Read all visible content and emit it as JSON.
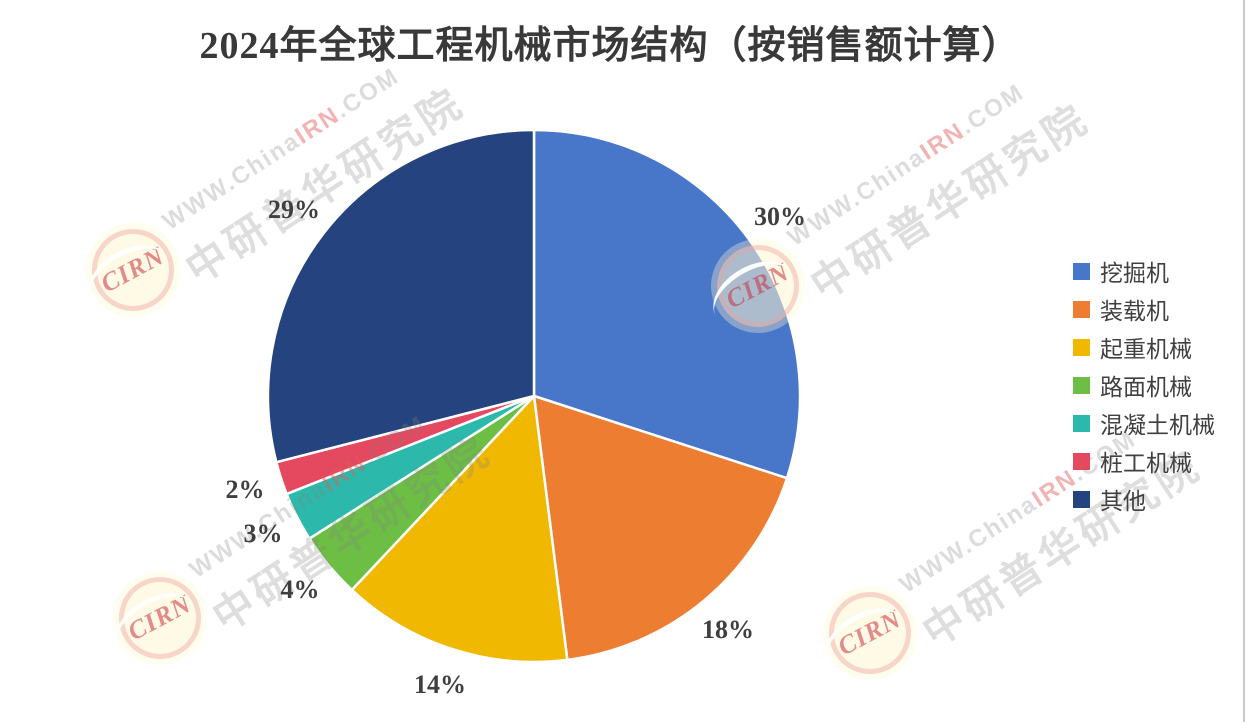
{
  "chart_data": {
    "type": "pie",
    "title": "2024年全球工程机械市场结构（按销售额计算）",
    "categories": [
      "挖掘机",
      "装载机",
      "起重机械",
      "路面机械",
      "混凝土机械",
      "桩工机械",
      "其他"
    ],
    "values": [
      30,
      18,
      14,
      4,
      3,
      2,
      29
    ],
    "unit": "%",
    "colors": [
      "#4876C9",
      "#ED7D31",
      "#F0B800",
      "#6CBE45",
      "#2CB9AB",
      "#E4495F",
      "#25437E"
    ],
    "legend_position": "right",
    "label_style": "percent-outside",
    "start_angle_deg": 0,
    "direction": "clockwise",
    "slice_border_color": "#ffffff",
    "label_color": "#3f3f3f",
    "title_color": "#393939"
  },
  "watermark": {
    "url_prefix": "WWW.China",
    "url_highlight": "IRN",
    "url_suffix": ".COM",
    "cn_text": "中研普华研究院",
    "logo_text": "CIRN",
    "highlight_color": "#e05a5a"
  }
}
